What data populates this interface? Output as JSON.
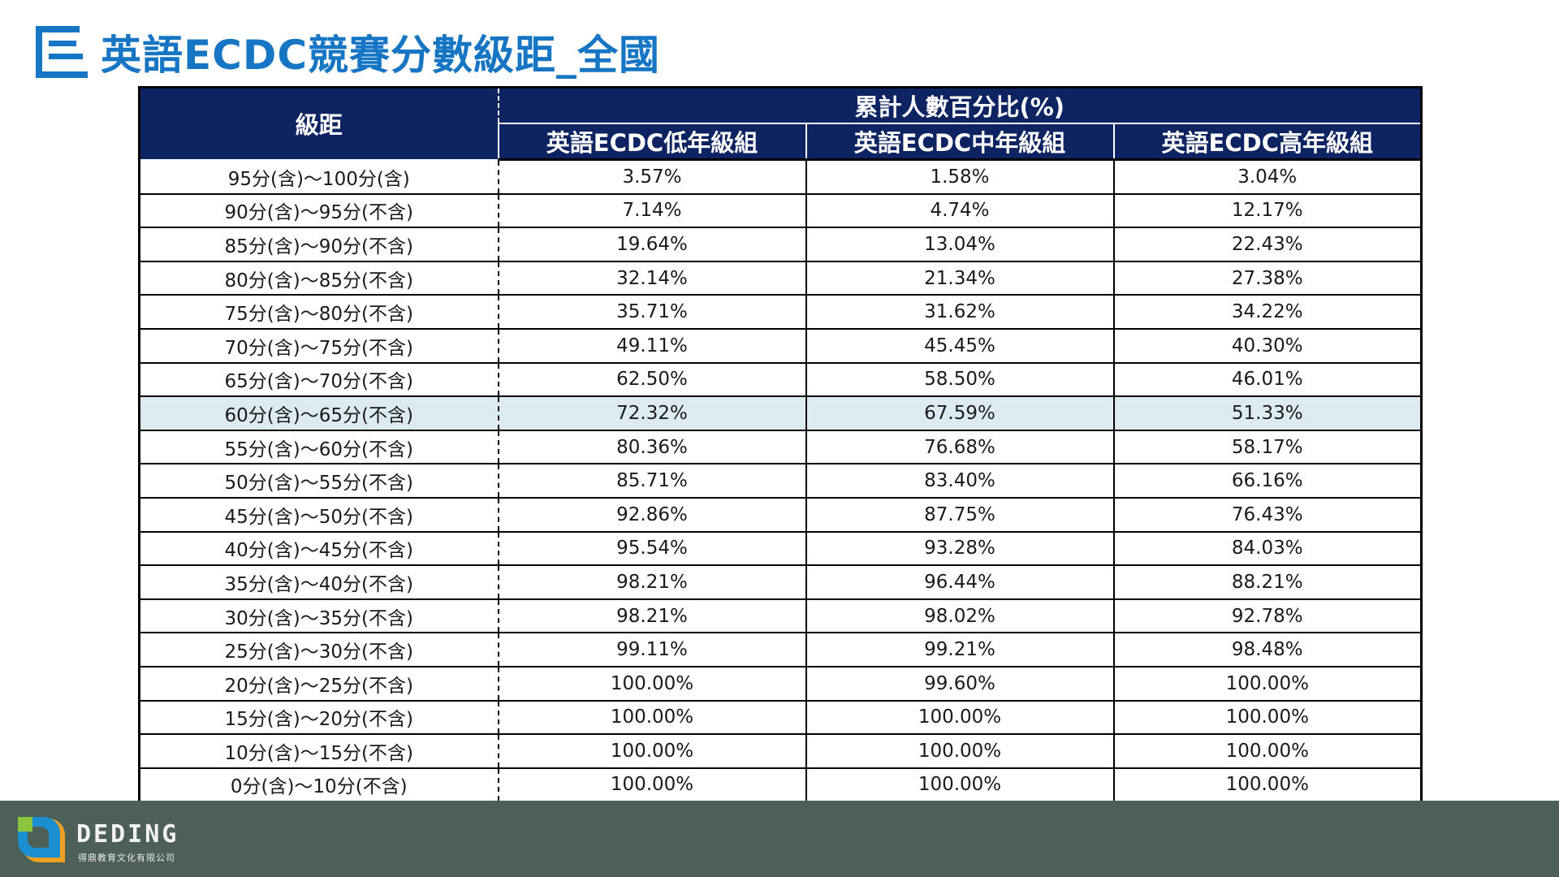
{
  "title": "英語ECDC競賽分數級距_全國",
  "colors": {
    "title": "#1676c4",
    "header_bg": "#0d2362",
    "highlight_row": "#dcebf2",
    "footer_bg": "#4c6057"
  },
  "table": {
    "range_header": "級距",
    "group_header": "累計人數百分比(%)",
    "columns": [
      "英語ECDC低年級組",
      "英語ECDC中年級組",
      "英語ECDC高年級組"
    ],
    "highlight_row_index": 7,
    "rows": [
      {
        "range": "95分(含)～100分(含)",
        "values": [
          "3.57%",
          "1.58%",
          "3.04%"
        ]
      },
      {
        "range": "90分(含)～95分(不含)",
        "values": [
          "7.14%",
          "4.74%",
          "12.17%"
        ]
      },
      {
        "range": "85分(含)～90分(不含)",
        "values": [
          "19.64%",
          "13.04%",
          "22.43%"
        ]
      },
      {
        "range": "80分(含)～85分(不含)",
        "values": [
          "32.14%",
          "21.34%",
          "27.38%"
        ]
      },
      {
        "range": "75分(含)～80分(不含)",
        "values": [
          "35.71%",
          "31.62%",
          "34.22%"
        ]
      },
      {
        "range": "70分(含)～75分(不含)",
        "values": [
          "49.11%",
          "45.45%",
          "40.30%"
        ]
      },
      {
        "range": "65分(含)～70分(不含)",
        "values": [
          "62.50%",
          "58.50%",
          "46.01%"
        ]
      },
      {
        "range": "60分(含)～65分(不含)",
        "values": [
          "72.32%",
          "67.59%",
          "51.33%"
        ]
      },
      {
        "range": "55分(含)～60分(不含)",
        "values": [
          "80.36%",
          "76.68%",
          "58.17%"
        ]
      },
      {
        "range": "50分(含)～55分(不含)",
        "values": [
          "85.71%",
          "83.40%",
          "66.16%"
        ]
      },
      {
        "range": "45分(含)～50分(不含)",
        "values": [
          "92.86%",
          "87.75%",
          "76.43%"
        ]
      },
      {
        "range": "40分(含)～45分(不含)",
        "values": [
          "95.54%",
          "93.28%",
          "84.03%"
        ]
      },
      {
        "range": "35分(含)～40分(不含)",
        "values": [
          "98.21%",
          "96.44%",
          "88.21%"
        ]
      },
      {
        "range": "30分(含)～35分(不含)",
        "values": [
          "98.21%",
          "98.02%",
          "92.78%"
        ]
      },
      {
        "range": "25分(含)～30分(不含)",
        "values": [
          "99.11%",
          "99.21%",
          "98.48%"
        ]
      },
      {
        "range": "20分(含)～25分(不含)",
        "values": [
          "100.00%",
          "99.60%",
          "100.00%"
        ]
      },
      {
        "range": "15分(含)～20分(不含)",
        "values": [
          "100.00%",
          "100.00%",
          "100.00%"
        ]
      },
      {
        "range": "10分(含)～15分(不含)",
        "values": [
          "100.00%",
          "100.00%",
          "100.00%"
        ]
      },
      {
        "range": "0分(含)～10分(不含)",
        "values": [
          "100.00%",
          "100.00%",
          "100.00%"
        ]
      }
    ]
  },
  "footer": {
    "brand": "DEDING",
    "brand_sub": "得鼎教育文化有限公司",
    "logo_icon": "deding-logo-icon"
  }
}
